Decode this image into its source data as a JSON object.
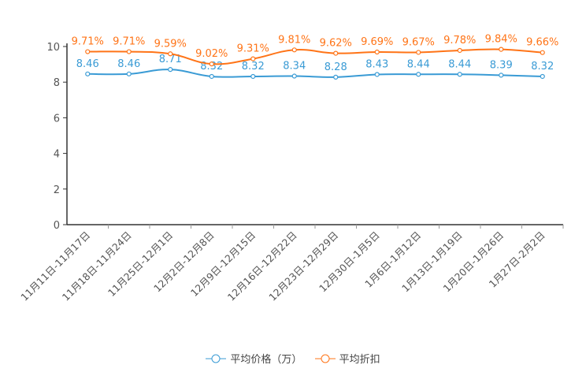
{
  "chart_data": {
    "type": "line",
    "categories": [
      "11月11日-11月17日",
      "11月18日-11月24日",
      "11月25日-12月1日",
      "12月2日-12月8日",
      "12月9日-12月15日",
      "12月16日-12月22日",
      "12月23日-12月29日",
      "12月30日-1月5日",
      "1月6日-1月12日",
      "1月13日-1月19日",
      "1月20日-1月26日",
      "1月27日-2月2日"
    ],
    "series": [
      {
        "name": "平均价格（万）",
        "color": "#3a9bd5",
        "values": [
          8.46,
          8.46,
          8.71,
          8.32,
          8.32,
          8.34,
          8.28,
          8.43,
          8.44,
          8.44,
          8.39,
          8.32
        ],
        "labels": [
          "8.46",
          "8.46",
          "8.71",
          "8.32",
          "8.32",
          "8.34",
          "8.28",
          "8.43",
          "8.44",
          "8.44",
          "8.39",
          "8.32"
        ]
      },
      {
        "name": "平均折扣",
        "color": "#ff7417",
        "values": [
          9.71,
          9.71,
          9.59,
          9.02,
          9.31,
          9.81,
          9.62,
          9.69,
          9.67,
          9.78,
          9.84,
          9.66
        ],
        "labels": [
          "9.71%",
          "9.71%",
          "9.59%",
          "9.02%",
          "9.31%",
          "9.81%",
          "9.62%",
          "9.69%",
          "9.67%",
          "9.78%",
          "9.84%",
          "9.66%"
        ]
      }
    ],
    "yticks": [
      "0",
      "2",
      "4",
      "6",
      "8",
      "10"
    ],
    "ylim": [
      0,
      10
    ],
    "legend_position": "bottom-center",
    "grid": false
  }
}
